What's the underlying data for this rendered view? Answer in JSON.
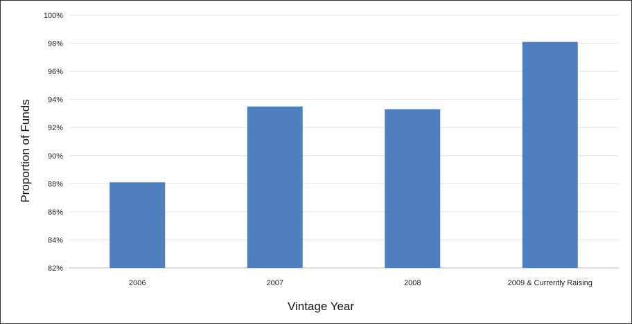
{
  "chart_data": {
    "type": "bar",
    "categories": [
      "2006",
      "2007",
      "2008",
      "2009 & Currently Raising"
    ],
    "values": [
      88.1,
      93.5,
      93.3,
      98.1
    ],
    "xlabel": "Vintage Year",
    "ylabel": "Proportion of Funds",
    "ylim": [
      82,
      100
    ],
    "yticks": [
      "82%",
      "84%",
      "86%",
      "88%",
      "90%",
      "92%",
      "94%",
      "96%",
      "98%",
      "100%"
    ],
    "grid": true,
    "bar_color": "#4f7fbf",
    "grid_color": "#e3e3e3",
    "legend": "none"
  }
}
